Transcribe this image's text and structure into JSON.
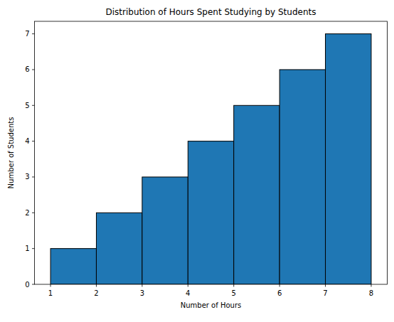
{
  "chart_data": {
    "type": "histogram",
    "title": "Distribution of Hours Spent Studying by Students",
    "x_label": "Number of Hours",
    "y_label": "Number of Students",
    "bins": [
      1,
      2,
      3,
      4,
      5,
      6,
      7,
      8
    ],
    "values": [
      1,
      2,
      3,
      4,
      5,
      6,
      7
    ],
    "color": "#1f77b4",
    "xlim": [
      0.65,
      8.35
    ],
    "ylim": [
      0,
      7.35
    ],
    "xticks": [
      1,
      2,
      3,
      4,
      5,
      6,
      7,
      8
    ],
    "yticks": [
      0,
      1,
      2,
      3,
      4,
      5,
      6,
      7
    ],
    "grid": false
  }
}
